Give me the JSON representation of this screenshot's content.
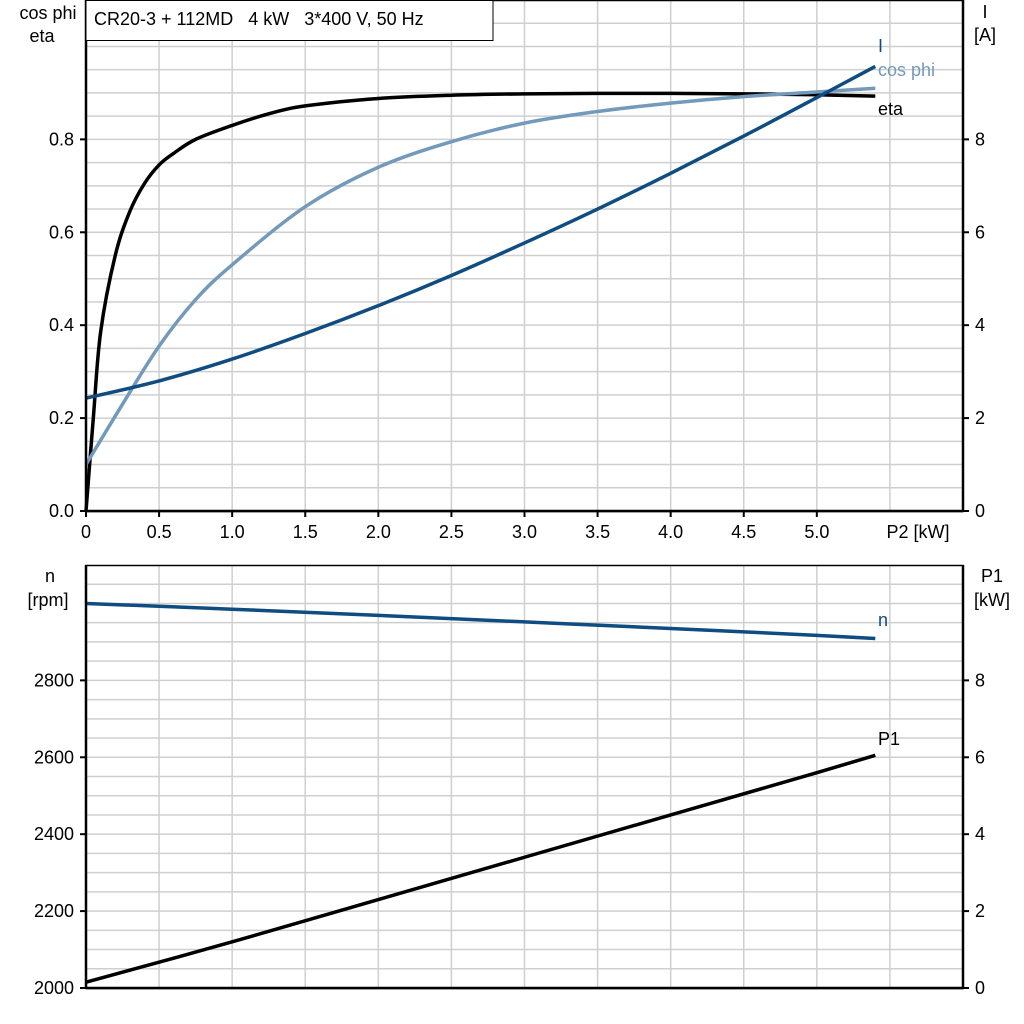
{
  "chart_data": [
    {
      "type": "line",
      "title": "CR20-3 + 112MD   4 kW   3*400 V, 50 Hz",
      "xlabel": "P2 [kW]",
      "ylabel_left": [
        "cos phi",
        "eta"
      ],
      "ylabel_right": [
        "I",
        "[A]"
      ],
      "xlim": [
        0,
        6
      ],
      "ylim_left": [
        0,
        1.1
      ],
      "ylim_right": [
        0,
        11
      ],
      "x_ticks": [
        "0",
        "0.5",
        "1.0",
        "1.5",
        "2.0",
        "2.5",
        "3.0",
        "3.5",
        "4.0",
        "4.5",
        "5.0"
      ],
      "y_ticks_left": [
        "0.0",
        "0.2",
        "0.4",
        "0.6",
        "0.8"
      ],
      "y_ticks_right": [
        "0",
        "2",
        "4",
        "6",
        "8"
      ],
      "grid": true,
      "series": [
        {
          "name": "eta",
          "axis": "left",
          "color": "#000000",
          "x": [
            0,
            0.05,
            0.1,
            0.2,
            0.3,
            0.4,
            0.5,
            0.6,
            0.75,
            1.0,
            1.25,
            1.5,
            2.0,
            2.5,
            3.0,
            3.5,
            4.0,
            4.5,
            5.0,
            5.4
          ],
          "y": [
            0,
            0.2,
            0.385,
            0.55,
            0.645,
            0.705,
            0.745,
            0.77,
            0.8,
            0.83,
            0.855,
            0.872,
            0.888,
            0.895,
            0.898,
            0.899,
            0.899,
            0.898,
            0.896,
            0.893
          ]
        },
        {
          "name": "cos phi",
          "axis": "left",
          "color": "#7399bb",
          "x": [
            0,
            0.25,
            0.5,
            0.75,
            1.0,
            1.5,
            2.0,
            2.5,
            3.0,
            3.5,
            4.0,
            4.5,
            5.0,
            5.4
          ],
          "y": [
            0.1,
            0.23,
            0.355,
            0.455,
            0.53,
            0.655,
            0.74,
            0.795,
            0.835,
            0.86,
            0.878,
            0.892,
            0.902,
            0.91
          ]
        },
        {
          "name": "I",
          "axis": "right",
          "color": "#0f4c81",
          "x": [
            0,
            0.5,
            1.0,
            1.5,
            2.0,
            2.5,
            3.0,
            3.5,
            4.0,
            4.5,
            5.0,
            5.4
          ],
          "y": [
            2.43,
            2.8,
            3.27,
            3.82,
            4.42,
            5.07,
            5.77,
            6.5,
            7.27,
            8.07,
            8.9,
            9.57
          ]
        }
      ]
    },
    {
      "type": "line",
      "ylabel_left": [
        "n",
        "[rpm]"
      ],
      "ylabel_right": [
        "P1",
        "[kW]"
      ],
      "xlim": [
        0,
        6
      ],
      "ylim_left": [
        2000,
        3100
      ],
      "ylim_right": [
        0,
        11
      ],
      "y_ticks_left": [
        "2000",
        "2200",
        "2400",
        "2600",
        "2800"
      ],
      "y_ticks_right": [
        "0",
        "2",
        "4",
        "6",
        "8"
      ],
      "grid": true,
      "series": [
        {
          "name": "n",
          "axis": "left",
          "color": "#0f4c81",
          "x": [
            0,
            1,
            2,
            3,
            4,
            5,
            5.4
          ],
          "y": [
            3000,
            2985,
            2969,
            2952,
            2935,
            2917,
            2909
          ]
        },
        {
          "name": "P1",
          "axis": "right",
          "color": "#000000",
          "x": [
            0,
            1,
            2,
            3,
            4,
            5,
            5.4
          ],
          "y": [
            0.15,
            1.2,
            2.3,
            3.4,
            4.5,
            5.6,
            6.05
          ]
        }
      ]
    }
  ]
}
